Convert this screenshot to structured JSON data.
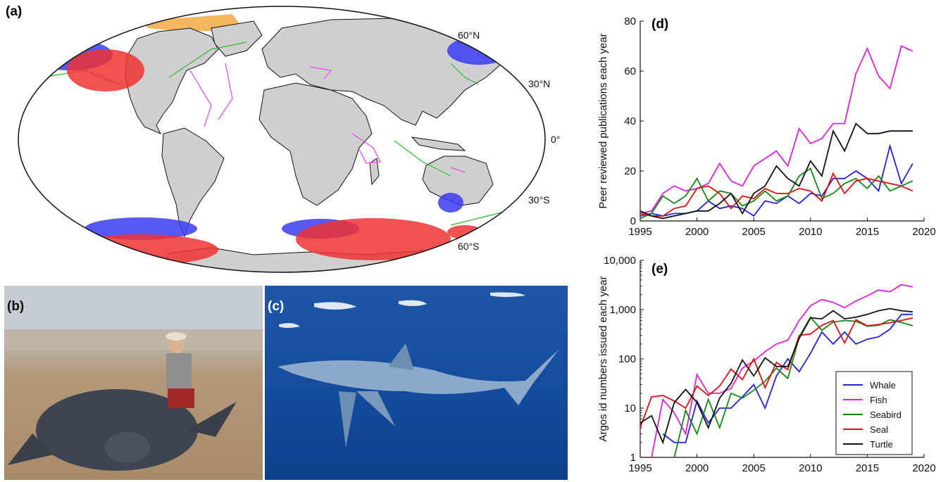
{
  "panels": {
    "a": "(a)",
    "b": "(b)",
    "c": "(c)",
    "d": "(d)",
    "e": "(e)"
  },
  "map": {
    "lat_labels": [
      "60°N",
      "30°N",
      "0°",
      "30°S",
      "60°S"
    ],
    "track_colors": {
      "whale": "#3b3bf0",
      "fish": "#ee44ee",
      "seabird": "#33b833",
      "seal": "#ee3333",
      "turtle": "#111111",
      "ice": "#f5b660"
    }
  },
  "photos": {
    "b_subject": "leatherback-turtle-photo",
    "c_subject": "blue-shark-photo"
  },
  "chart_data": [
    {
      "type": "line",
      "panel": "(d)",
      "title": "",
      "xlabel": "",
      "ylabel": "Peer reviewed publications each year",
      "xlim": [
        1995,
        2020
      ],
      "ylim": [
        0,
        80
      ],
      "xticks": [
        1995,
        2000,
        2005,
        2010,
        2015,
        2020
      ],
      "yticks": [
        0,
        20,
        40,
        60,
        80
      ],
      "x": [
        1995,
        1996,
        1997,
        1998,
        1999,
        2000,
        2001,
        2002,
        2003,
        2004,
        2005,
        2006,
        2007,
        2008,
        2009,
        2010,
        2011,
        2012,
        2013,
        2014,
        2015,
        2016,
        2017,
        2018,
        2019
      ],
      "series": [
        {
          "name": "Whale",
          "color": "#2222dd",
          "values": [
            2,
            3,
            2,
            3,
            3,
            4,
            8,
            5,
            6,
            5,
            2,
            8,
            7,
            10,
            7,
            11,
            10,
            17,
            17,
            20,
            17,
            12,
            30,
            15,
            23
          ]
        },
        {
          "name": "Fish",
          "color": "#dd22dd",
          "values": [
            3,
            4,
            11,
            14,
            12,
            13,
            15,
            23,
            16,
            14,
            22,
            25,
            28,
            22,
            37,
            31,
            33,
            39,
            39,
            59,
            69,
            58,
            53,
            70,
            68
          ]
        },
        {
          "name": "Seabird",
          "color": "#118811",
          "values": [
            1,
            3,
            10,
            7,
            10,
            17,
            8,
            12,
            11,
            6,
            8,
            12,
            8,
            10,
            18,
            21,
            9,
            11,
            15,
            17,
            13,
            18,
            12,
            14,
            16
          ]
        },
        {
          "name": "Seal",
          "color": "#dd1111",
          "values": [
            3,
            2,
            2,
            5,
            6,
            13,
            14,
            11,
            5,
            10,
            9,
            13,
            11,
            11,
            13,
            12,
            8,
            19,
            11,
            16,
            17,
            16,
            15,
            14,
            12
          ]
        },
        {
          "name": "Turtle",
          "color": "#111111",
          "values": [
            4,
            2,
            1,
            2,
            3,
            4,
            4,
            7,
            11,
            3,
            11,
            14,
            22,
            17,
            14,
            24,
            18,
            36,
            28,
            39,
            35,
            35,
            36,
            36,
            36
          ]
        }
      ]
    },
    {
      "type": "line",
      "panel": "(e)",
      "title": "",
      "xlabel": "",
      "ylabel": "Argos id numbers issued each year",
      "yscale": "log",
      "xlim": [
        1995,
        2020
      ],
      "ylim": [
        1,
        10000
      ],
      "xticks": [
        1995,
        2000,
        2005,
        2010,
        2015,
        2020
      ],
      "yticks": [
        1,
        10,
        100,
        1000,
        10000
      ],
      "ytick_labels": [
        "1",
        "10",
        "100",
        "1,000",
        "10,000"
      ],
      "x": [
        1995,
        1996,
        1997,
        1998,
        1999,
        2000,
        2001,
        2002,
        2003,
        2004,
        2005,
        2006,
        2007,
        2008,
        2009,
        2010,
        2011,
        2012,
        2013,
        2014,
        2015,
        2016,
        2017,
        2018,
        2019
      ],
      "series": [
        {
          "name": "Whale",
          "color": "#2222dd",
          "values": [
            null,
            null,
            3,
            2,
            2,
            14,
            5,
            10,
            10,
            17,
            30,
            10,
            45,
            100,
            55,
            130,
            350,
            200,
            350,
            200,
            250,
            280,
            400,
            800,
            800
          ]
        },
        {
          "name": "Fish",
          "color": "#dd22dd",
          "values": [
            null,
            1,
            15,
            8,
            3,
            48,
            20,
            20,
            25,
            65,
            90,
            140,
            200,
            240,
            600,
            1200,
            1600,
            1400,
            1100,
            1500,
            1900,
            2500,
            2300,
            3200,
            2900
          ]
        },
        {
          "name": "Seabird",
          "color": "#118811",
          "values": [
            null,
            null,
            null,
            1,
            9,
            3,
            15,
            4,
            20,
            16,
            23,
            35,
            65,
            40,
            280,
            700,
            380,
            560,
            600,
            580,
            460,
            480,
            620,
            550,
            470
          ]
        },
        {
          "name": "Seal",
          "color": "#dd1111",
          "values": [
            4,
            17,
            18,
            14,
            10,
            28,
            18,
            28,
            62,
            38,
            100,
            26,
            85,
            60,
            300,
            320,
            480,
            600,
            210,
            620,
            470,
            500,
            540,
            600,
            680
          ]
        },
        {
          "name": "Turtle",
          "color": "#111111",
          "values": [
            5,
            7,
            2,
            13,
            24,
            13,
            4,
            16,
            32,
            95,
            45,
            105,
            70,
            70,
            260,
            680,
            650,
            950,
            650,
            700,
            800,
            950,
            1050,
            950,
            900
          ]
        }
      ],
      "legend": {
        "placement": "bottom-right",
        "entries": [
          "Whale",
          "Fish",
          "Seabird",
          "Seal",
          "Turtle"
        ]
      }
    }
  ]
}
